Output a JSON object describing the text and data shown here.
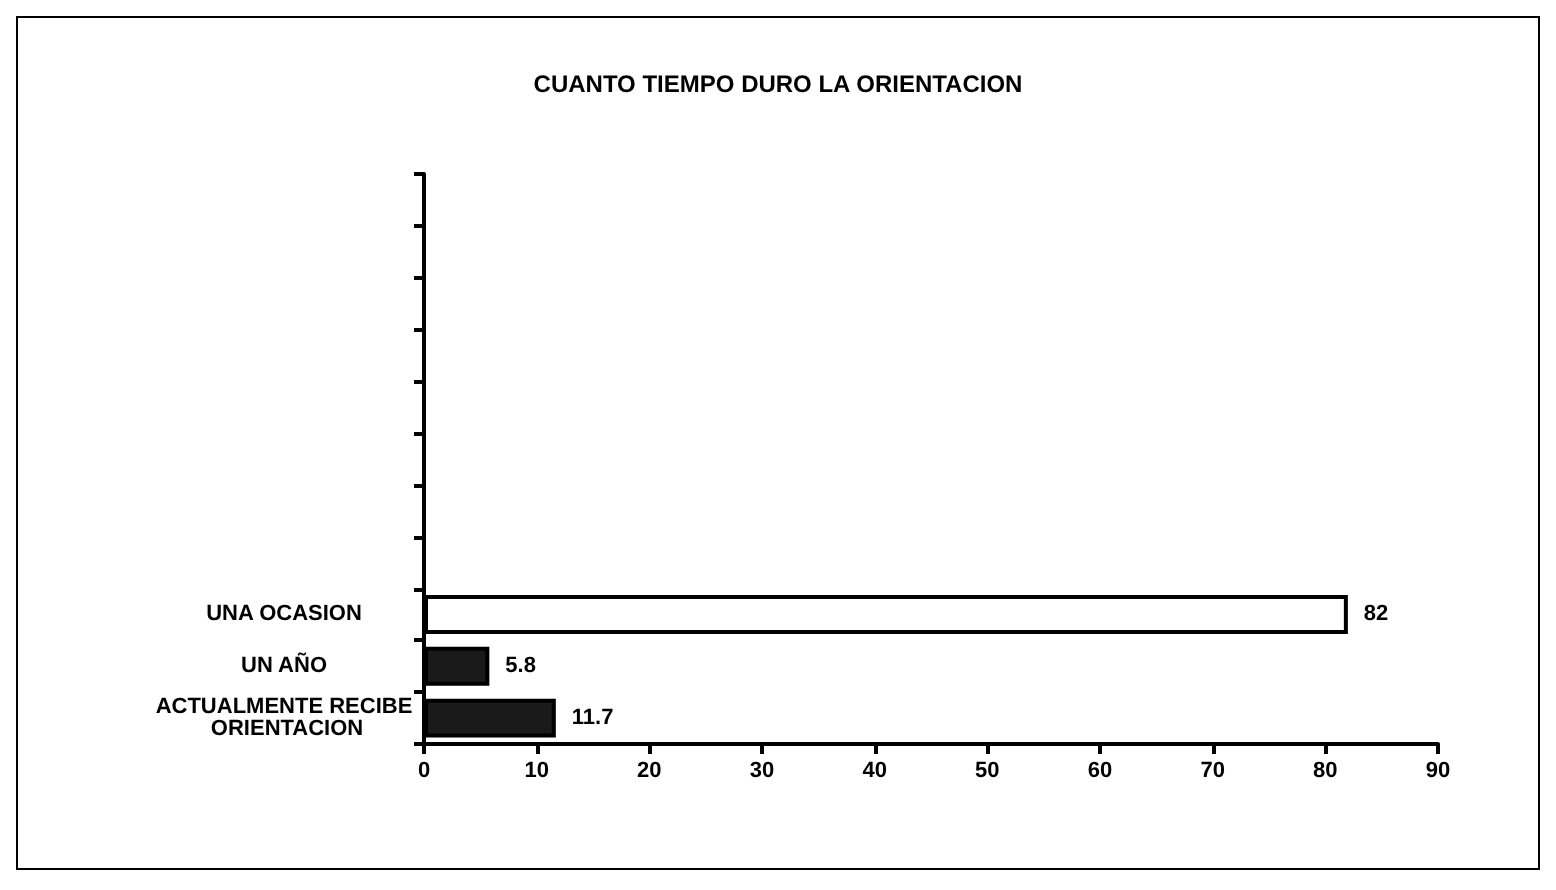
{
  "chart_data": {
    "type": "bar",
    "orientation": "horizontal",
    "title": "CUANTO TIEMPO DURO LA ORIENTACION",
    "categories": [
      null,
      null,
      null,
      null,
      null,
      null,
      null,
      null,
      "UNA OCASION",
      "UN AÑO",
      "ACTUALMENTE RECIBE ORIENTACION"
    ],
    "values": [
      null,
      null,
      null,
      null,
      null,
      null,
      null,
      null,
      82,
      5.8,
      11.7
    ],
    "colors": [
      "#000000",
      "#000000",
      "#000000",
      "#000000",
      "#000000",
      "#000000",
      "#000000",
      "#000000",
      "#ffffff",
      "#1a1a1a",
      "#1a1a1a"
    ],
    "xlim": [
      0,
      90
    ],
    "xticks": [
      0,
      10,
      20,
      30,
      40,
      50,
      60,
      70,
      80,
      90
    ],
    "data_labels": true,
    "grid": false
  }
}
